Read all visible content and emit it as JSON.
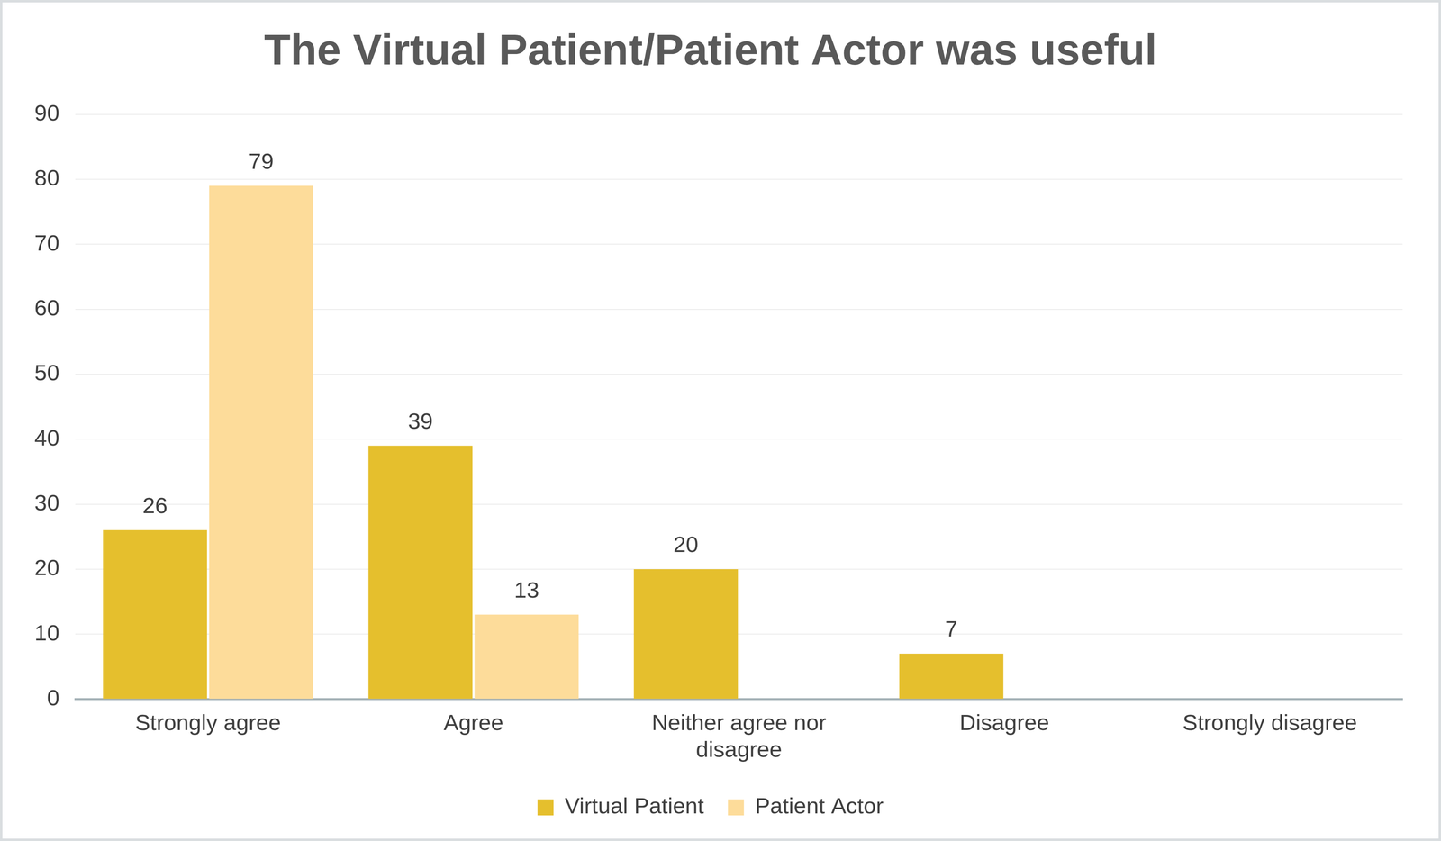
{
  "chart_data": {
    "type": "bar",
    "title": "The Virtual Patient/Patient Actor was useful",
    "categories": [
      "Strongly agree",
      "Agree",
      "Neither agree nor disagree",
      "Disagree",
      "Strongly disagree"
    ],
    "series": [
      {
        "name": "Virtual Patient",
        "color": "#e5bf2d",
        "values": [
          26,
          39,
          20,
          7,
          null
        ]
      },
      {
        "name": "Patient Actor",
        "color": "#fddc9a",
        "values": [
          79,
          13,
          null,
          null,
          null
        ]
      }
    ],
    "ylim": [
      0,
      90
    ],
    "yticks": [
      0,
      10,
      20,
      30,
      40,
      50,
      60,
      70,
      80,
      90
    ],
    "grid": true,
    "legend": "bottom",
    "data_labels": true
  }
}
